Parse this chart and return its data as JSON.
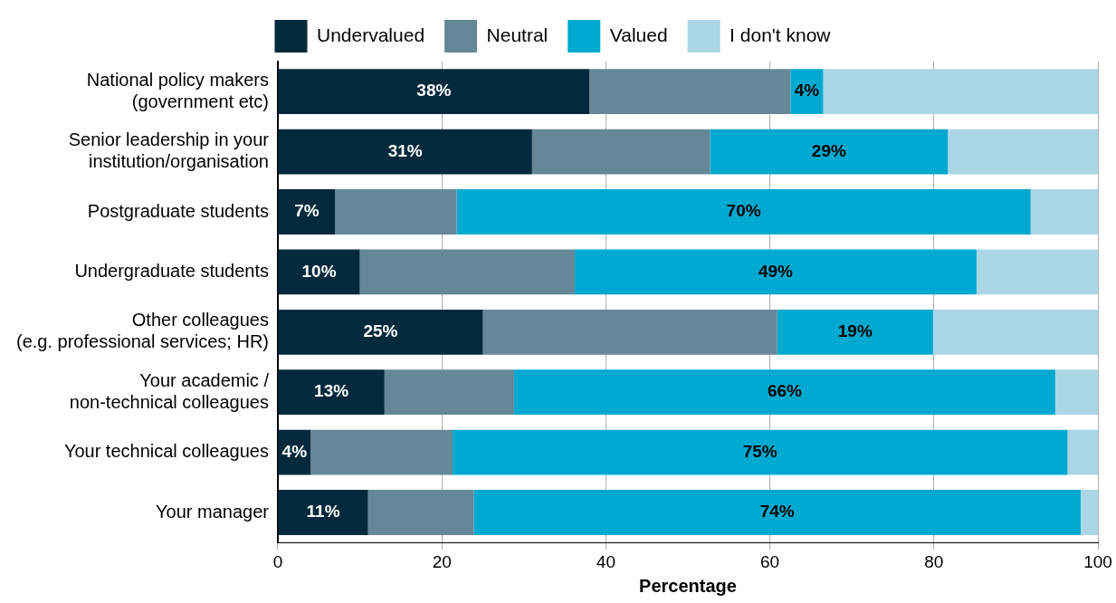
{
  "chart_data": {
    "type": "bar",
    "orientation": "horizontal",
    "stacked": true,
    "xlabel": "Percentage",
    "categories": [
      "National policy makers\n(government etc)",
      "Senior leadership in your\ninstitution/organisation",
      "Postgraduate students",
      "Undergraduate students",
      "Other colleagues\n(e.g. professional services; HR)",
      "Your academic /\nnon-technical colleagues",
      "Your technical colleagues",
      "Your manager"
    ],
    "series": [
      {
        "name": "Undervalued",
        "color": "#022a3c",
        "values": [
          38,
          31,
          7,
          10,
          25,
          13,
          4,
          11
        ],
        "value_labels": [
          "38%",
          "31%",
          "7%",
          "10%",
          "25%",
          "13%",
          "4%",
          "11%"
        ]
      },
      {
        "name": "Neutral",
        "color": "#658797",
        "values": [
          24.5,
          21.7,
          14.8,
          26.2,
          35.9,
          15.8,
          17.3,
          12.9
        ]
      },
      {
        "name": "Valued",
        "color": "#00a9cf",
        "values": [
          4,
          29,
          70,
          49,
          19,
          66,
          75,
          74
        ],
        "value_labels": [
          "4%",
          "29%",
          "70%",
          "49%",
          "19%",
          "66%",
          "75%",
          "74%"
        ]
      },
      {
        "name": "I don't know",
        "color": "#abd6e6",
        "values": [
          33.5,
          18.3,
          8.2,
          14.8,
          20.1,
          5.2,
          3.7,
          2.1
        ]
      }
    ],
    "xlim": [
      0,
      100
    ],
    "xticks": [
      0,
      20,
      40,
      60,
      80,
      100
    ],
    "grid": "x",
    "legend": "top"
  }
}
